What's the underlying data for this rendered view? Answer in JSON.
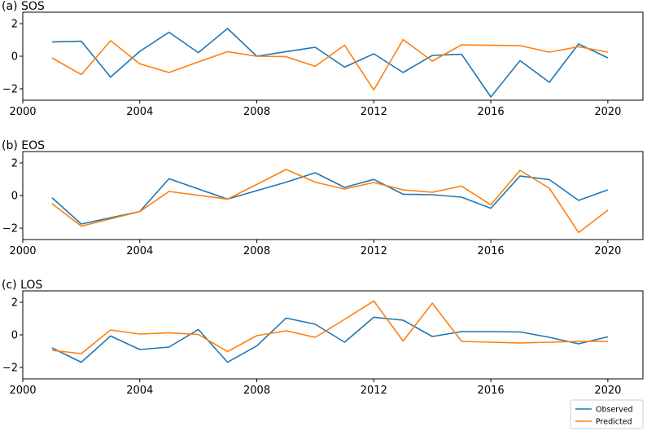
{
  "chart_data": [
    {
      "type": "line",
      "title": "(a) SOS",
      "xlim": [
        2000,
        2021.2
      ],
      "ylim": [
        -2.7,
        2.7
      ],
      "xticks": [
        "2000",
        "2004",
        "2008",
        "2012",
        "2016",
        "2020"
      ],
      "yticks": [
        "2",
        "0",
        "−2"
      ],
      "x": [
        2001,
        2002,
        2003,
        2004,
        2005,
        2006,
        2007,
        2008,
        2009,
        2010,
        2011,
        2012,
        2013,
        2014,
        2015,
        2016,
        2017,
        2018,
        2019,
        2020
      ],
      "series": [
        {
          "name": "Observed",
          "color": "#1f77b4",
          "values": [
            0.88,
            0.92,
            -1.28,
            0.3,
            1.47,
            0.22,
            1.7,
            0.0,
            0.28,
            0.55,
            -0.67,
            0.15,
            -1.0,
            0.05,
            0.12,
            -2.5,
            -0.27,
            -1.6,
            0.75,
            -0.1
          ]
        },
        {
          "name": "Predicted",
          "color": "#ff7f0e",
          "values": [
            -0.1,
            -1.13,
            0.95,
            -0.47,
            -1.0,
            -0.35,
            0.28,
            0.0,
            -0.03,
            -0.62,
            0.68,
            -2.07,
            1.02,
            -0.3,
            0.7,
            0.67,
            0.65,
            0.25,
            0.58,
            0.25
          ]
        }
      ]
    },
    {
      "type": "line",
      "title": "(b) EOS",
      "xlim": [
        2000,
        2021.2
      ],
      "ylim": [
        -2.7,
        2.7
      ],
      "xticks": [
        "2000",
        "2004",
        "2008",
        "2012",
        "2016",
        "2020"
      ],
      "yticks": [
        "2",
        "0",
        "−2"
      ],
      "x": [
        2001,
        2002,
        2004,
        2005,
        2007,
        2008,
        2009,
        2010,
        2011,
        2012,
        2013,
        2014,
        2015,
        2016,
        2017,
        2018,
        2019,
        2020
      ],
      "series": [
        {
          "name": "Observed",
          "color": "#1f77b4",
          "values": [
            -0.13,
            -1.75,
            -0.98,
            1.03,
            -0.22,
            0.3,
            0.82,
            1.4,
            0.5,
            0.99,
            0.08,
            0.05,
            -0.1,
            -0.78,
            1.2,
            0.98,
            -0.3,
            0.35
          ]
        },
        {
          "name": "Predicted",
          "color": "#ff7f0e",
          "values": [
            -0.5,
            -1.88,
            -0.98,
            0.25,
            -0.22,
            0.68,
            1.6,
            0.82,
            0.4,
            0.8,
            0.35,
            0.2,
            0.58,
            -0.57,
            1.55,
            0.45,
            -2.27,
            -0.9
          ]
        }
      ]
    },
    {
      "type": "line",
      "title": "(c) LOS",
      "xlim": [
        2000,
        2021.2
      ],
      "ylim": [
        -2.7,
        2.7
      ],
      "xticks": [
        "2000",
        "2004",
        "2008",
        "2012",
        "2016",
        "2020"
      ],
      "yticks": [
        "2",
        "0",
        "−2"
      ],
      "x": [
        2001,
        2002,
        2003,
        2004,
        2005,
        2006,
        2007,
        2008,
        2009,
        2010,
        2011,
        2012,
        2013,
        2014,
        2015,
        2016,
        2017,
        2018,
        2019,
        2020
      ],
      "series": [
        {
          "name": "Observed",
          "color": "#1f77b4",
          "values": [
            -0.8,
            -1.68,
            -0.07,
            -0.9,
            -0.75,
            0.33,
            -1.68,
            -0.68,
            1.03,
            0.65,
            -0.45,
            1.08,
            0.9,
            -0.1,
            0.2,
            0.2,
            0.18,
            -0.15,
            -0.55,
            -0.12
          ]
        },
        {
          "name": "Predicted",
          "color": "#ff7f0e",
          "values": [
            -0.95,
            -1.15,
            0.3,
            0.05,
            0.13,
            0.02,
            -1.02,
            -0.05,
            0.25,
            -0.15,
            0.95,
            2.08,
            -0.38,
            1.95,
            -0.4,
            -0.45,
            -0.5,
            -0.45,
            -0.4,
            -0.4
          ]
        }
      ]
    }
  ],
  "legend": {
    "placement": "bottom-right",
    "items": [
      {
        "label": "Observed",
        "color": "#1f77b4"
      },
      {
        "label": "Predicted",
        "color": "#ff7f0e"
      }
    ]
  }
}
